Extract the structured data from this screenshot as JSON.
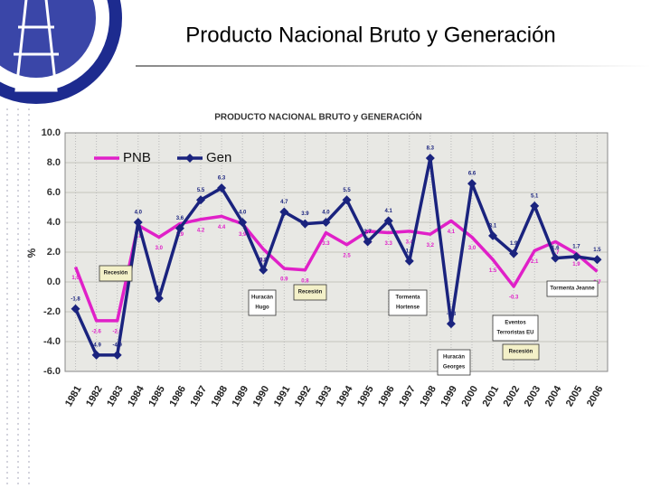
{
  "title": "Producto Nacional Bruto y Generación",
  "chart_data": {
    "type": "line",
    "title": "PRODUCTO NACIONAL BRUTO y GENERACIÓN",
    "ylabel": "%",
    "categories": [
      "1981",
      "1982",
      "1983",
      "1984",
      "1985",
      "1986",
      "1987",
      "1988",
      "1989",
      "1990",
      "1991",
      "1992",
      "1993",
      "1994",
      "1995",
      "1996",
      "1997",
      "1998",
      "1999",
      "2000",
      "2001",
      "2002",
      "2003",
      "2004",
      "2005",
      "2006"
    ],
    "series": [
      {
        "name": "PNB",
        "color": "#e020c8",
        "marker": "none",
        "values": [
          1.0,
          -2.6,
          -2.6,
          3.8,
          3.0,
          3.9,
          4.2,
          4.4,
          3.9,
          2.2,
          0.9,
          0.8,
          3.3,
          2.5,
          3.4,
          3.3,
          3.4,
          3.2,
          4.1,
          3.0,
          1.5,
          -0.3,
          2.1,
          2.7,
          1.9,
          0.7
        ],
        "value_labels": [
          "1.0",
          "-2.6",
          "-2.6",
          "3.8",
          "3.0",
          "3.9",
          "4.2",
          "4.4",
          "3.9",
          "2.2",
          "0.9",
          "0.8",
          "3.3",
          "2.5",
          "3.4",
          "3.3",
          "3.4",
          "3.2",
          "4.1",
          "3.0",
          "1.5",
          "-0.3",
          "2.1",
          "2.7",
          "1.9",
          "0.7"
        ]
      },
      {
        "name": "Gen",
        "color": "#1a237e",
        "marker": "diamond",
        "values": [
          -1.8,
          -4.9,
          -4.9,
          4.0,
          -1.1,
          3.6,
          5.5,
          6.3,
          4.0,
          0.8,
          4.7,
          3.9,
          4.0,
          5.5,
          2.7,
          4.1,
          1.4,
          8.3,
          -2.8,
          6.6,
          3.1,
          1.9,
          5.1,
          1.6,
          1.7,
          1.5
        ],
        "value_labels": [
          "-1.8",
          "-4.9",
          "-4.9",
          "4.0",
          "-1.1",
          "3.6",
          "5.5",
          "6.3",
          "4.0",
          "0.8",
          "4.7",
          "3.9",
          "4.0",
          "5.5",
          "2.7",
          "4.1",
          "1.4",
          "8.3",
          "-2.8",
          "6.6",
          "3.1",
          "1.9",
          "5.1",
          "1.6",
          "1.7",
          "1.5"
        ]
      }
    ],
    "ylim": [
      -6,
      10
    ],
    "yticks": [
      {
        "value": -6,
        "label": "-6.0"
      },
      {
        "value": -4,
        "label": "-4.0"
      },
      {
        "value": -2,
        "label": "-2.0"
      },
      {
        "value": 0,
        "label": "0.0"
      },
      {
        "value": 2,
        "label": "2.0"
      },
      {
        "value": 4,
        "label": "4.0"
      },
      {
        "value": 6,
        "label": "6.0"
      },
      {
        "value": 8,
        "label": "8.0"
      },
      {
        "value": 10,
        "label": "10.0"
      }
    ],
    "grid": true,
    "legend": "upper left",
    "annotations": [
      [
        "Recesión"
      ],
      [
        "Huracán",
        "Hugo"
      ],
      [
        "Recesión"
      ],
      [
        "Tormenta",
        "Hortense"
      ],
      [
        "Eventos",
        "Terroristas EU"
      ],
      [
        "Huracán",
        "Georges"
      ],
      [
        "Recesión"
      ],
      [
        "Tormenta Jeanne"
      ]
    ]
  }
}
